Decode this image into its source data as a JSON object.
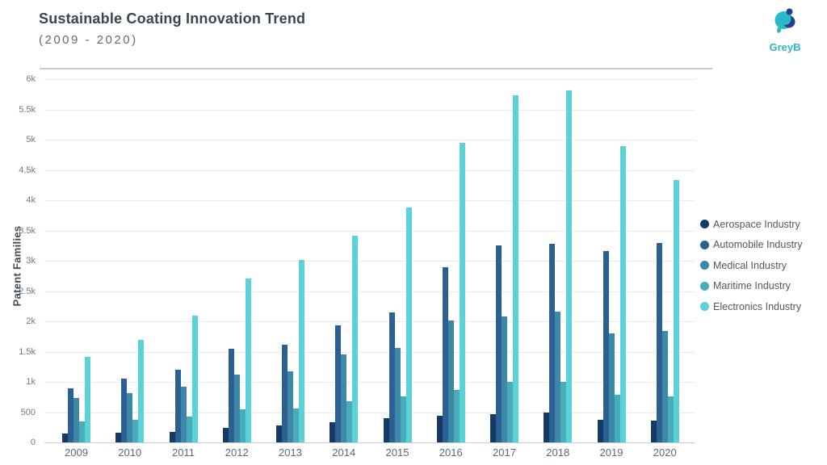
{
  "header": {
    "title": "Sustainable Coating Innovation Trend",
    "subtitle": "(2009 - 2020)",
    "logo_text": "GreyB"
  },
  "colors": {
    "aerospace": "#163a66",
    "automobile": "#2c6093",
    "medical": "#3d87a8",
    "maritime": "#49adb9",
    "electronics": "#5bd1d8",
    "logo_teal": "#2cb9c6",
    "logo_navy": "#253f8e",
    "title_text": "#37474f",
    "gridline": "#e9ebed"
  },
  "chart_data": {
    "type": "bar",
    "title": "Sustainable Coating Innovation Trend (2009 - 2020)",
    "xlabel": "",
    "ylabel": "Patent Families",
    "ylim": [
      0,
      6000
    ],
    "ytick_step": 500,
    "ytick_labels": [
      "0",
      "500",
      "1k",
      "1.5k",
      "2k",
      "2.5k",
      "3k",
      "3.5k",
      "4k",
      "4.5k",
      "5k",
      "5.5k",
      "6k"
    ],
    "grid": true,
    "legend_position": "right",
    "categories": [
      "2009",
      "2010",
      "2011",
      "2012",
      "2013",
      "2014",
      "2015",
      "2016",
      "2017",
      "2018",
      "2019",
      "2020"
    ],
    "series": [
      {
        "name": "Aerospace Industry",
        "color": "#163a66",
        "values": [
          150,
          160,
          175,
          240,
          280,
          340,
          395,
          445,
          465,
          500,
          370,
          360
        ]
      },
      {
        "name": "Automobile Industry",
        "color": "#2c6093",
        "values": [
          890,
          1060,
          1200,
          1550,
          1620,
          1930,
          2150,
          2890,
          3250,
          3280,
          3160,
          3290
        ]
      },
      {
        "name": "Medical Industry",
        "color": "#3d87a8",
        "values": [
          730,
          810,
          920,
          1120,
          1180,
          1450,
          1560,
          2015,
          2080,
          2160,
          1805,
          1835
        ]
      },
      {
        "name": "Maritime Industry",
        "color": "#49adb9",
        "values": [
          350,
          380,
          425,
          545,
          555,
          675,
          755,
          870,
          995,
          1000,
          785,
          755
        ]
      },
      {
        "name": "Electronics Industry",
        "color": "#5bd1d8",
        "values": [
          1420,
          1690,
          2100,
          2710,
          3020,
          3420,
          3880,
          4950,
          5730,
          5820,
          4890,
          4330
        ]
      }
    ]
  }
}
